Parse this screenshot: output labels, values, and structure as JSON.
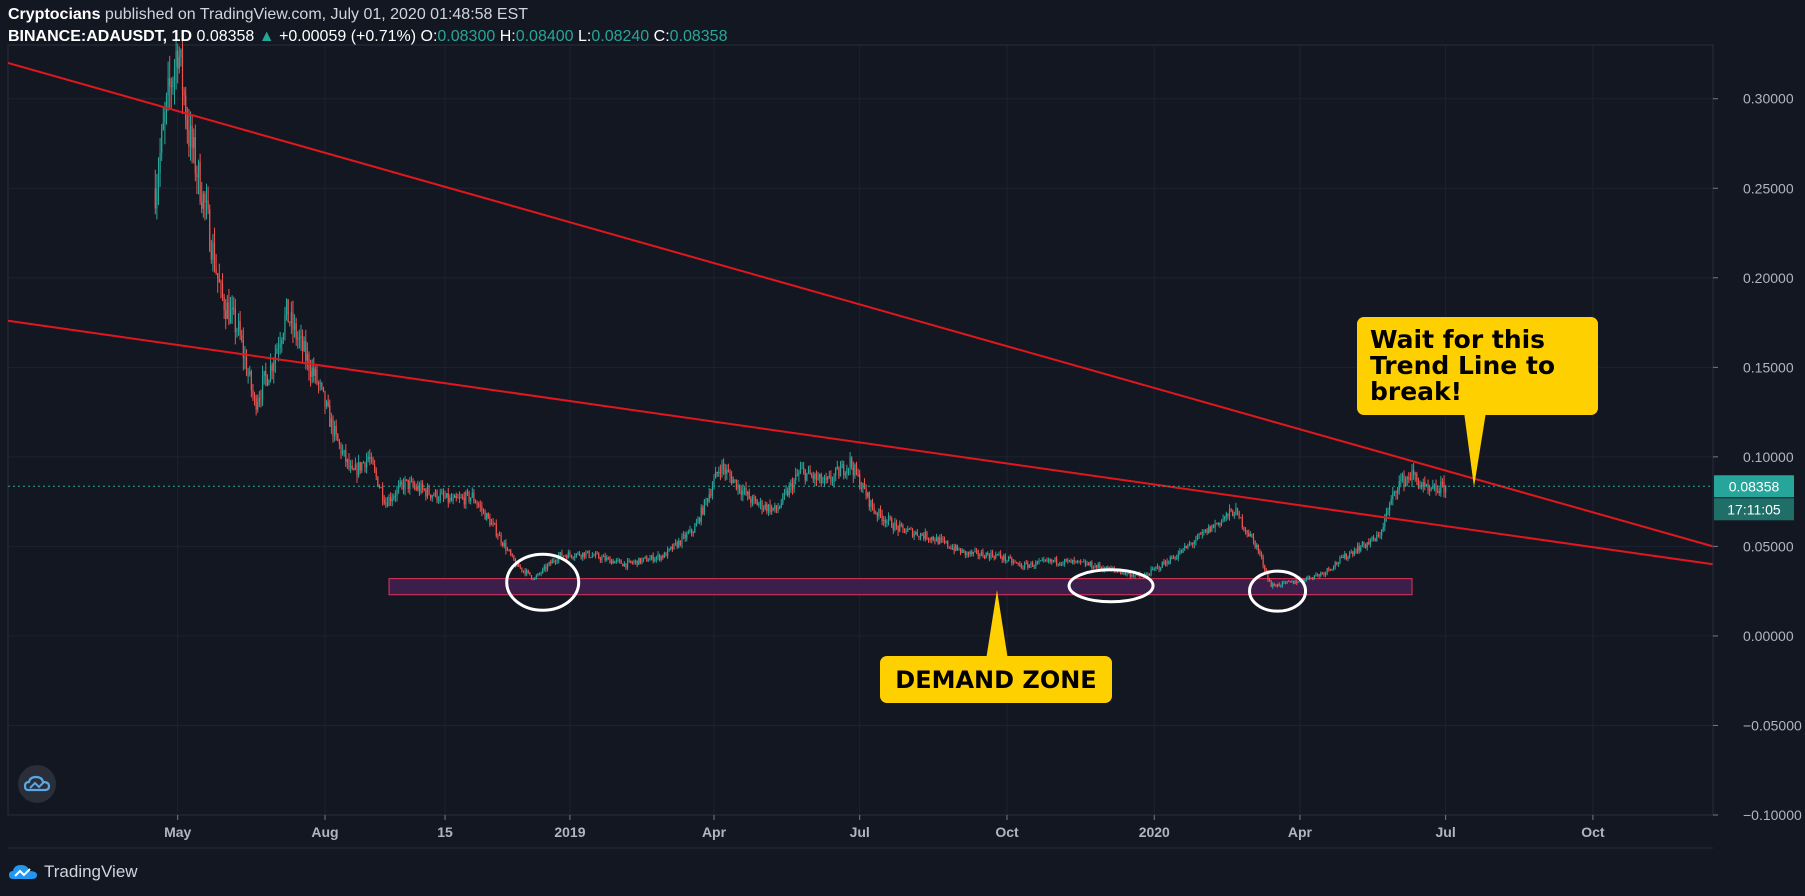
{
  "header": {
    "publisher": "Cryptocians",
    "published_text": " published on TradingView.com, July 01, 2020 01:48:58 EST",
    "symbol": "BINANCE:ADAUSDT, 1D",
    "price": "0.08358",
    "change_arrow": "▲",
    "change": "+0.00059 (+0.71%)",
    "o_label": "O:",
    "o_value": "0.08300",
    "h_label": "H:",
    "h_value": "0.08400",
    "l_label": "L:",
    "l_value": "0.08240",
    "c_label": "C:",
    "c_value": "0.08358"
  },
  "price_tag": {
    "price": "0.08358",
    "countdown": "17:11:05"
  },
  "annotations": {
    "trendline_callout": [
      "Wait for this",
      "Trend Line to",
      "break!"
    ],
    "demand_callout": "DEMAND ZONE"
  },
  "footer": {
    "brand": "TradingView"
  },
  "icons": {
    "badge": "tradingview-cloud-icon",
    "brand": "tradingview-logo-icon"
  },
  "colors": {
    "background": "#131722",
    "grid": "#1e2230",
    "up": "#26a69a",
    "down": "#ef5350",
    "trendline": "#e0181e",
    "demand_fill": "#3b1f4a",
    "demand_border": "#e0345a",
    "callout": "#ffd000",
    "text": "#b2b5be"
  },
  "chart_data": {
    "type": "candlestick",
    "symbol": "BINANCE:ADAUSDT",
    "interval": "1D",
    "ylim": [
      -0.1,
      0.33
    ],
    "y_ticks": [
      "0.30000",
      "0.25000",
      "0.20000",
      "0.15000",
      "0.10000",
      "0.05000",
      "0.00000",
      "−0.05000",
      "−0.10000"
    ],
    "y_tick_values": [
      0.3,
      0.25,
      0.2,
      0.15,
      0.1,
      0.05,
      0.0,
      -0.05,
      -0.1
    ],
    "x_start": "2018-01-15",
    "x_end": "2020-12-15",
    "x_ticks": [
      {
        "label": "May",
        "date": "2018-05-01"
      },
      {
        "label": "Aug",
        "date": "2018-08-01"
      },
      {
        "label": "15",
        "date": "2018-10-15"
      },
      {
        "label": "2019",
        "date": "2019-01-01"
      },
      {
        "label": "Apr",
        "date": "2019-04-01"
      },
      {
        "label": "Jul",
        "date": "2019-07-01"
      },
      {
        "label": "Oct",
        "date": "2019-10-01"
      },
      {
        "label": "2020",
        "date": "2020-01-01"
      },
      {
        "label": "Apr",
        "date": "2020-04-01"
      },
      {
        "label": "Jul",
        "date": "2020-07-01"
      },
      {
        "label": "Oct",
        "date": "2020-10-01"
      }
    ],
    "price_path": [
      [
        "2018-04-17",
        0.25
      ],
      [
        "2018-04-25",
        0.3
      ],
      [
        "2018-05-01",
        0.33
      ],
      [
        "2018-05-08",
        0.28
      ],
      [
        "2018-05-18",
        0.24
      ],
      [
        "2018-05-28",
        0.19
      ],
      [
        "2018-06-08",
        0.17
      ],
      [
        "2018-06-18",
        0.13
      ],
      [
        "2018-06-28",
        0.15
      ],
      [
        "2018-07-08",
        0.18
      ],
      [
        "2018-07-18",
        0.16
      ],
      [
        "2018-07-28",
        0.14
      ],
      [
        "2018-08-08",
        0.11
      ],
      [
        "2018-08-18",
        0.09
      ],
      [
        "2018-08-28",
        0.1
      ],
      [
        "2018-09-08",
        0.075
      ],
      [
        "2018-09-20",
        0.085
      ],
      [
        "2018-10-05",
        0.08
      ],
      [
        "2018-10-20",
        0.075
      ],
      [
        "2018-11-01",
        0.078
      ],
      [
        "2018-11-15",
        0.06
      ],
      [
        "2018-11-28",
        0.04
      ],
      [
        "2018-12-10",
        0.032
      ],
      [
        "2018-12-25",
        0.045
      ],
      [
        "2019-01-10",
        0.046
      ],
      [
        "2019-02-05",
        0.04
      ],
      [
        "2019-03-01",
        0.045
      ],
      [
        "2019-03-20",
        0.06
      ],
      [
        "2019-04-05",
        0.095
      ],
      [
        "2019-04-25",
        0.075
      ],
      [
        "2019-05-10",
        0.07
      ],
      [
        "2019-05-25",
        0.092
      ],
      [
        "2019-06-10",
        0.085
      ],
      [
        "2019-06-25",
        0.097
      ],
      [
        "2019-07-10",
        0.07
      ],
      [
        "2019-07-25",
        0.06
      ],
      [
        "2019-08-15",
        0.055
      ],
      [
        "2019-09-05",
        0.046
      ],
      [
        "2019-09-25",
        0.045
      ],
      [
        "2019-10-10",
        0.039
      ],
      [
        "2019-11-01",
        0.042
      ],
      [
        "2019-11-20",
        0.04
      ],
      [
        "2019-12-10",
        0.036
      ],
      [
        "2019-12-25",
        0.033
      ],
      [
        "2020-01-15",
        0.045
      ],
      [
        "2020-02-05",
        0.06
      ],
      [
        "2020-02-20",
        0.07
      ],
      [
        "2020-03-05",
        0.05
      ],
      [
        "2020-03-14",
        0.028
      ],
      [
        "2020-03-28",
        0.03
      ],
      [
        "2020-04-15",
        0.035
      ],
      [
        "2020-05-05",
        0.048
      ],
      [
        "2020-05-20",
        0.055
      ],
      [
        "2020-06-01",
        0.085
      ],
      [
        "2020-06-10",
        0.09
      ],
      [
        "2020-06-20",
        0.08
      ],
      [
        "2020-07-01",
        0.08358
      ]
    ],
    "trendlines": [
      {
        "from": [
          "2018-01-15",
          0.32
        ],
        "to": [
          "2020-12-15",
          0.05
        ]
      },
      {
        "from": [
          "2018-01-15",
          0.176
        ],
        "to": [
          "2020-12-15",
          0.04
        ]
      }
    ],
    "demand_zone": {
      "from": "2018-09-10",
      "to": "2020-06-10",
      "low": 0.023,
      "high": 0.032
    },
    "last_price": 0.08358
  }
}
